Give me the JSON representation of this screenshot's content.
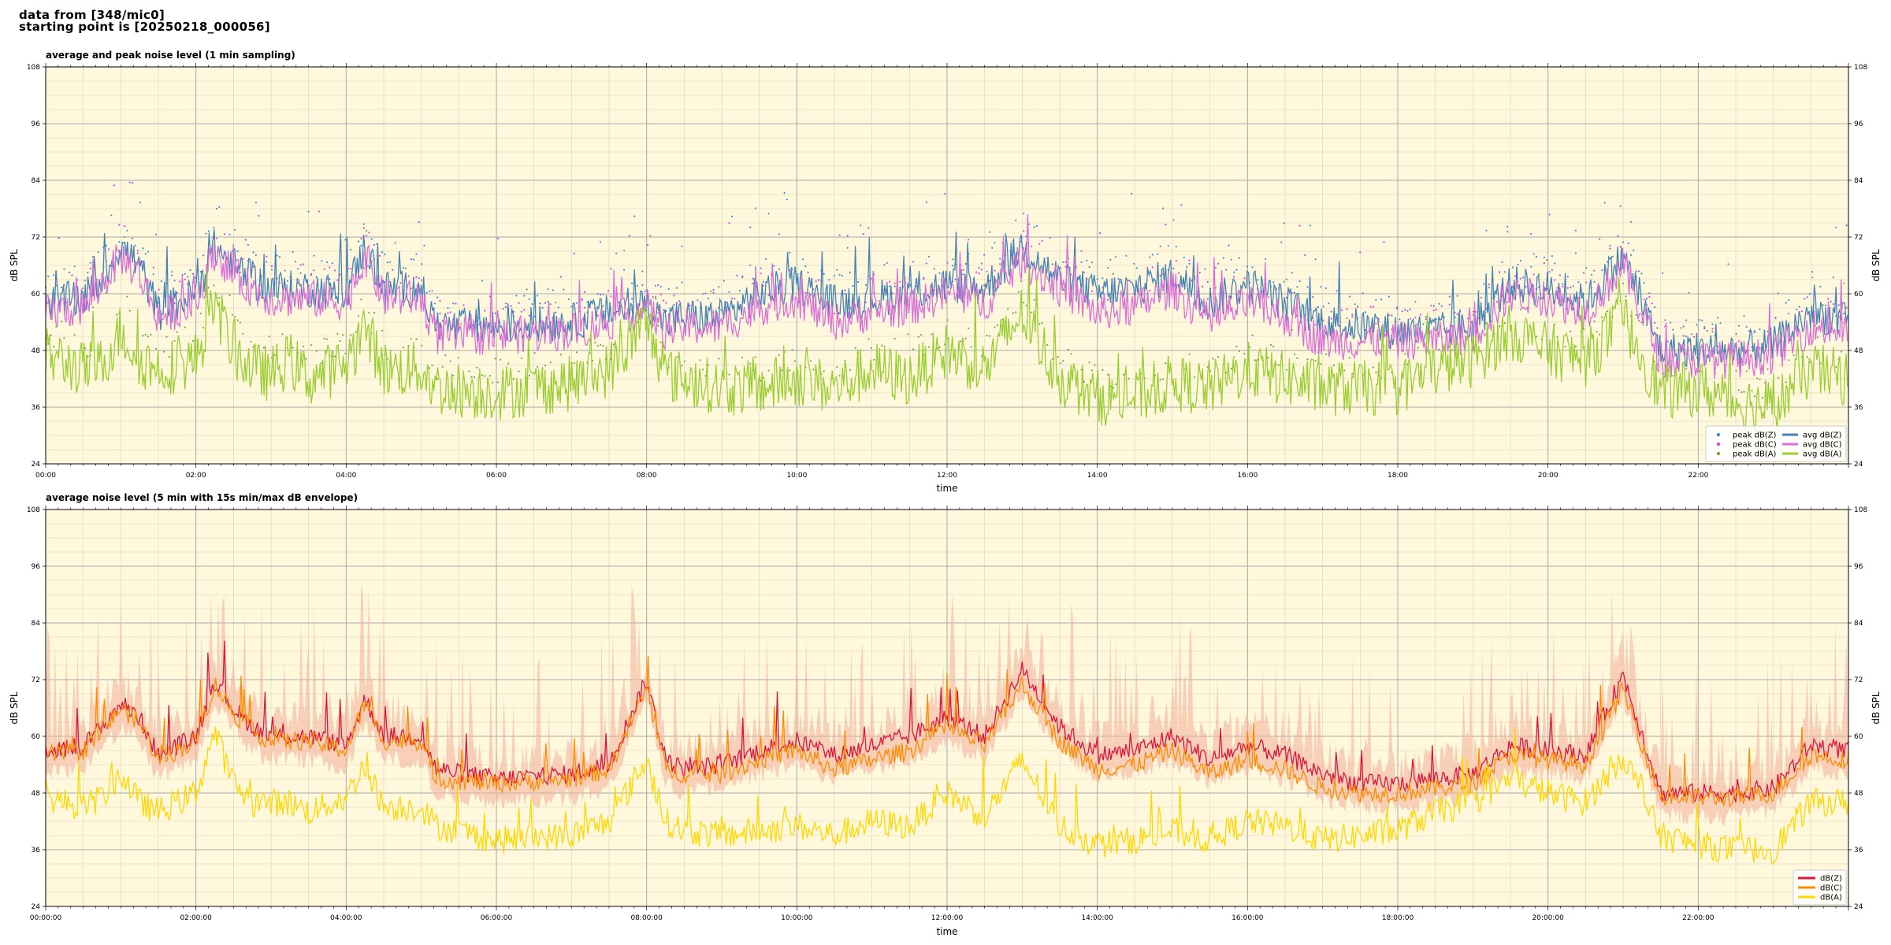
{
  "header": {
    "line1": "data from [348/mic0]",
    "line2": "starting point is [20250218_000056]"
  },
  "chart_data": [
    {
      "type": "line",
      "title": "average and peak noise level (1 min sampling)",
      "xlabel": "time",
      "ylabel": "dB SPL",
      "ylabel_right": "dB SPL",
      "xlim_hours": [
        0,
        24
      ],
      "ylim": [
        24,
        108
      ],
      "yticks": [
        "24",
        "36",
        "48",
        "60",
        "72",
        "84",
        "96",
        "108"
      ],
      "xticks": [
        {
          "h": 0,
          "label": "00:00"
        },
        {
          "h": 2,
          "label": "02:00"
        },
        {
          "h": 4,
          "label": "04:00"
        },
        {
          "h": 6,
          "label": "06:00"
        },
        {
          "h": 8,
          "label": "08:00"
        },
        {
          "h": 10,
          "label": "10:00"
        },
        {
          "h": 12,
          "label": "12:00"
        },
        {
          "h": 14,
          "label": "14:00"
        },
        {
          "h": 16,
          "label": "16:00"
        },
        {
          "h": 18,
          "label": "18:00"
        },
        {
          "h": 20,
          "label": "20:00"
        },
        {
          "h": 22,
          "label": "22:00"
        }
      ],
      "grid": true,
      "background": "#fff8dc",
      "legend_position": "lower-right",
      "legend": [
        {
          "label": "peak dB(Z)",
          "color": "#3a8fd8",
          "kind": "dot"
        },
        {
          "label": "peak dB(C)",
          "color": "#e040e0",
          "kind": "dot"
        },
        {
          "label": "peak dB(A)",
          "color": "#6aa84f",
          "kind": "dot"
        },
        {
          "label": "avg dB(Z)",
          "color": "#4682b4",
          "kind": "line"
        },
        {
          "label": "avg dB(C)",
          "color": "#da70d6",
          "kind": "line"
        },
        {
          "label": "avg dB(A)",
          "color": "#9acd32",
          "kind": "line"
        }
      ],
      "series": [
        {
          "name": "avg dB(Z)",
          "color": "#4682b4",
          "x": [
            0,
            0.5,
            0.75,
            1,
            1.25,
            1.5,
            2,
            2.25,
            2.5,
            2.75,
            3,
            3.25,
            3.5,
            4,
            4.25,
            4.5,
            5,
            5.2,
            6,
            7,
            7.5,
            8,
            8.25,
            8.5,
            9,
            9.5,
            10,
            10.5,
            11,
            11.5,
            12,
            12.5,
            13,
            13.5,
            14,
            14.5,
            15,
            15.5,
            16,
            16.5,
            17,
            17.5,
            18,
            18.5,
            19,
            19.5,
            20,
            20.5,
            21,
            21.5,
            22,
            22.5,
            23,
            23.5,
            24
          ],
          "y": [
            58,
            59,
            63,
            70,
            66,
            56,
            60,
            70,
            66,
            63,
            61,
            61,
            61,
            60,
            70,
            61,
            61,
            53,
            53,
            54,
            56,
            58,
            54,
            55,
            55,
            60,
            62,
            58,
            59,
            60,
            62,
            61,
            70,
            63,
            60,
            61,
            64,
            58,
            62,
            58,
            54,
            53,
            52,
            52,
            53,
            62,
            61,
            58,
            68,
            48,
            48,
            48,
            49,
            56,
            54
          ]
        },
        {
          "name": "avg dB(C)",
          "color": "#da70d6",
          "x": [
            0,
            0.5,
            0.75,
            1,
            1.25,
            1.5,
            2,
            2.25,
            2.5,
            2.75,
            3,
            3.25,
            3.5,
            4,
            4.25,
            4.5,
            5,
            5.2,
            6,
            7,
            7.5,
            8,
            8.25,
            8.5,
            9,
            9.5,
            10,
            10.5,
            11,
            11.5,
            12,
            12.5,
            13,
            13.5,
            14,
            14.5,
            15,
            15.5,
            16,
            16.5,
            17,
            17.5,
            18,
            18.5,
            19,
            19.5,
            20,
            20.5,
            21,
            21.5,
            22,
            22.5,
            23,
            23.5,
            24
          ],
          "y": [
            56,
            57,
            62,
            68,
            64,
            55,
            58,
            69,
            64,
            61,
            59,
            59,
            59,
            58,
            68,
            59,
            59,
            51,
            51,
            52,
            54,
            57,
            52,
            53,
            53,
            57,
            59,
            54,
            56,
            57,
            60,
            58,
            67,
            61,
            56,
            57,
            61,
            54,
            58,
            55,
            50,
            50,
            50,
            50,
            51,
            60,
            59,
            56,
            66,
            46,
            46,
            46,
            47,
            53,
            52
          ]
        },
        {
          "name": "avg dB(A)",
          "color": "#9acd32",
          "x": [
            0,
            0.5,
            0.75,
            1,
            1.25,
            1.5,
            2,
            2.25,
            2.5,
            2.75,
            3,
            3.25,
            3.5,
            4,
            4.25,
            4.5,
            5,
            5.2,
            6,
            7,
            7.5,
            8,
            8.25,
            8.5,
            9,
            9.5,
            10,
            10.5,
            11,
            11.5,
            12,
            12.5,
            13,
            13.5,
            14,
            14.5,
            15,
            15.5,
            16,
            16.5,
            17,
            17.5,
            18,
            18.5,
            19,
            19.5,
            20,
            20.5,
            21,
            21.5,
            22,
            22.5,
            23,
            23.5,
            24
          ],
          "y": [
            47,
            44,
            45,
            52,
            46,
            44,
            46,
            58,
            48,
            44,
            43,
            46,
            42,
            45,
            53,
            44,
            44,
            40,
            39,
            41,
            44,
            54,
            43,
            42,
            40,
            40,
            42,
            40,
            44,
            42,
            48,
            44,
            56,
            42,
            38,
            38,
            41,
            40,
            44,
            42,
            40,
            40,
            40,
            44,
            46,
            52,
            48,
            46,
            55,
            39,
            40,
            37,
            36,
            44,
            42
          ]
        }
      ]
    },
    {
      "type": "area",
      "title": "average noise level (5 min with 15s min/max dB envelope)",
      "xlabel": "time",
      "ylabel": "dB SPL",
      "ylabel_right": "dB SPL",
      "xlim_hours": [
        0,
        24
      ],
      "ylim": [
        24,
        108
      ],
      "yticks": [
        "24",
        "36",
        "48",
        "60",
        "72",
        "84",
        "96",
        "108"
      ],
      "xticks": [
        {
          "h": 0,
          "label": "00:00:00"
        },
        {
          "h": 2,
          "label": "02:00:00"
        },
        {
          "h": 4,
          "label": "04:00:00"
        },
        {
          "h": 6,
          "label": "06:00:00"
        },
        {
          "h": 8,
          "label": "08:00:00"
        },
        {
          "h": 10,
          "label": "10:00:00"
        },
        {
          "h": 12,
          "label": "12:00:00"
        },
        {
          "h": 14,
          "label": "14:00:00"
        },
        {
          "h": 16,
          "label": "16:00:00"
        },
        {
          "h": 18,
          "label": "18:00:00"
        },
        {
          "h": 20,
          "label": "20:00:00"
        },
        {
          "h": 22,
          "label": "22:00:00"
        }
      ],
      "grid": true,
      "background": "#fff8dc",
      "legend_position": "lower-right",
      "legend": [
        {
          "label": "dB(Z)",
          "color": "#dc143c",
          "kind": "line"
        },
        {
          "label": "dB(C)",
          "color": "#ff8c00",
          "kind": "line"
        },
        {
          "label": "dB(A)",
          "color": "#ffd700",
          "kind": "line"
        }
      ],
      "envelope_color": "#f4b6a0",
      "series": [
        {
          "name": "dB(Z)",
          "color": "#dc143c",
          "x": [
            0,
            0.5,
            0.75,
            1,
            1.25,
            1.5,
            2,
            2.25,
            2.5,
            2.75,
            3,
            3.25,
            3.5,
            4,
            4.25,
            4.5,
            5,
            5.2,
            6,
            7,
            7.5,
            8,
            8.25,
            8.5,
            9,
            9.5,
            10,
            10.5,
            11,
            11.5,
            12,
            12.5,
            13,
            13.5,
            14,
            14.5,
            15,
            15.5,
            16,
            16.5,
            17,
            17.5,
            18,
            18.5,
            19,
            19.5,
            20,
            20.5,
            21,
            21.5,
            22,
            22.5,
            23,
            23.5,
            24
          ],
          "y": [
            57,
            58,
            62,
            67,
            64,
            56,
            60,
            72,
            66,
            62,
            60,
            60,
            60,
            58,
            68,
            60,
            60,
            53,
            51,
            52,
            54,
            72,
            55,
            53,
            54,
            57,
            59,
            56,
            58,
            60,
            64,
            60,
            74,
            62,
            56,
            57,
            60,
            55,
            58,
            56,
            52,
            50,
            50,
            51,
            52,
            58,
            57,
            56,
            73,
            48,
            48,
            48,
            49,
            58,
            57
          ]
        },
        {
          "name": "dB(C)",
          "color": "#ff8c00",
          "x": [
            0,
            0.5,
            0.75,
            1,
            1.25,
            1.5,
            2,
            2.25,
            2.5,
            2.75,
            3,
            3.25,
            3.5,
            4,
            4.25,
            4.5,
            5,
            5.2,
            6,
            7,
            7.5,
            8,
            8.25,
            8.5,
            9,
            9.5,
            10,
            10.5,
            11,
            11.5,
            12,
            12.5,
            13,
            13.5,
            14,
            14.5,
            15,
            15.5,
            16,
            16.5,
            17,
            17.5,
            18,
            18.5,
            19,
            19.5,
            20,
            20.5,
            21,
            21.5,
            22,
            22.5,
            23,
            23.5,
            24
          ],
          "y": [
            56,
            57,
            61,
            66,
            63,
            55,
            59,
            71,
            65,
            61,
            59,
            59,
            59,
            57,
            67,
            59,
            59,
            51,
            50,
            51,
            53,
            70,
            53,
            52,
            52,
            55,
            57,
            53,
            55,
            57,
            62,
            58,
            71,
            59,
            53,
            54,
            57,
            52,
            55,
            53,
            49,
            48,
            48,
            49,
            50,
            56,
            55,
            54,
            70,
            47,
            47,
            47,
            48,
            56,
            55
          ]
        },
        {
          "name": "dB(A)",
          "color": "#ffd700",
          "x": [
            0,
            0.5,
            0.75,
            1,
            1.25,
            1.5,
            2,
            2.25,
            2.5,
            2.75,
            3,
            3.25,
            3.5,
            4,
            4.25,
            4.5,
            5,
            5.2,
            6,
            7,
            7.5,
            8,
            8.25,
            8.5,
            9,
            9.5,
            10,
            10.5,
            11,
            11.5,
            12,
            12.5,
            13,
            13.5,
            14,
            14.5,
            15,
            15.5,
            16,
            16.5,
            17,
            17.5,
            18,
            18.5,
            19,
            19.5,
            20,
            20.5,
            21,
            21.5,
            22,
            22.5,
            23,
            23.5,
            24
          ],
          "y": [
            47,
            45,
            47,
            52,
            46,
            44,
            48,
            61,
            50,
            46,
            46,
            46,
            44,
            47,
            54,
            45,
            45,
            41,
            38,
            39,
            42,
            55,
            42,
            40,
            39,
            40,
            41,
            39,
            42,
            41,
            48,
            43,
            55,
            41,
            37,
            38,
            40,
            38,
            42,
            41,
            38,
            39,
            40,
            44,
            46,
            51,
            48,
            46,
            56,
            39,
            37,
            36,
            36,
            46,
            46
          ]
        }
      ]
    }
  ]
}
